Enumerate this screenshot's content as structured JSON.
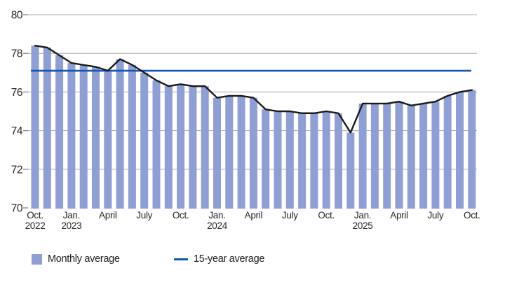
{
  "legend": {
    "monthly": {
      "label": "Monthly average"
    },
    "average": {
      "label": "15-year average"
    }
  },
  "colors": {
    "bar": "#8f9ed3",
    "trend_line": "#1a1a1a",
    "average_line": "#1557b0",
    "grid": "#a8a8a8",
    "tick": "#8c8c8c",
    "text": "#262626"
  },
  "chart_data": {
    "type": "bar",
    "title": "",
    "xlabel": "",
    "ylabel": "",
    "ylim": [
      70,
      80
    ],
    "yticks": [
      80,
      78,
      76,
      74,
      72,
      70
    ],
    "grid": true,
    "legend_position": "bottom",
    "categories": [
      "Oct. 2022",
      "Nov. 2022",
      "Dec. 2022",
      "Jan. 2023",
      "Feb. 2023",
      "Mar. 2023",
      "Apr. 2023",
      "May 2023",
      "Jun. 2023",
      "Jul. 2023",
      "Aug. 2023",
      "Sep. 2023",
      "Oct. 2023",
      "Nov. 2023",
      "Dec. 2023",
      "Jan. 2024",
      "Feb. 2024",
      "Mar. 2024",
      "Apr. 2024",
      "May 2024",
      "Jun. 2024",
      "Jul. 2024",
      "Aug. 2024",
      "Sep. 2024",
      "Oct. 2024",
      "Nov. 2024",
      "Dec. 2024",
      "Jan. 2025",
      "Feb. 2025",
      "Mar. 2025",
      "Apr. 2025",
      "May 2025",
      "Jun. 2025",
      "Jul. 2025",
      "Aug. 2025",
      "Sep. 2025",
      "Oct. 2025"
    ],
    "values": [
      78.4,
      78.3,
      77.9,
      77.5,
      77.4,
      77.3,
      77.1,
      77.7,
      77.4,
      77.0,
      76.6,
      76.3,
      76.4,
      76.3,
      76.3,
      75.7,
      75.8,
      75.8,
      75.7,
      75.1,
      75.0,
      75.0,
      74.9,
      74.9,
      75.0,
      74.9,
      73.9,
      75.4,
      75.4,
      75.4,
      75.5,
      75.3,
      75.4,
      75.5,
      75.8,
      76.0,
      76.1
    ],
    "series": [
      {
        "name": "Monthly average",
        "type": "bar-with-top-line"
      },
      {
        "name": "15-year average",
        "type": "horizontal-line",
        "value": 77.1
      }
    ],
    "xticks": [
      {
        "index": 0,
        "line1": "Oct.",
        "line2": "2022"
      },
      {
        "index": 3,
        "line1": "Jan.",
        "line2": "2023"
      },
      {
        "index": 6,
        "line1": "April",
        "line2": ""
      },
      {
        "index": 9,
        "line1": "July",
        "line2": ""
      },
      {
        "index": 12,
        "line1": "Oct.",
        "line2": ""
      },
      {
        "index": 15,
        "line1": "Jan.",
        "line2": "2024"
      },
      {
        "index": 18,
        "line1": "April",
        "line2": ""
      },
      {
        "index": 21,
        "line1": "July",
        "line2": ""
      },
      {
        "index": 24,
        "line1": "Oct.",
        "line2": ""
      },
      {
        "index": 27,
        "line1": "Jan.",
        "line2": "2025"
      },
      {
        "index": 30,
        "line1": "April",
        "line2": ""
      },
      {
        "index": 33,
        "line1": "July",
        "line2": ""
      },
      {
        "index": 36,
        "line1": "Oct.",
        "line2": ""
      }
    ]
  }
}
